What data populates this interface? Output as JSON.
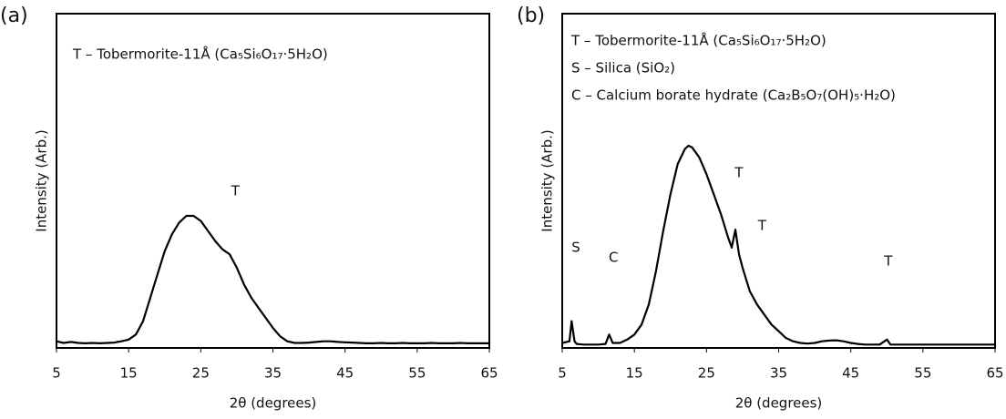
{
  "chart_data": [
    {
      "type": "line",
      "panel_label": "(a)",
      "xlabel": "2θ (degrees)",
      "ylabel": "Intensity (Arb.)",
      "legend_lines": [
        "T – Tobermorite-11Å (Ca₅Si₆O₁₇·5H₂O)"
      ],
      "xlim": [
        5,
        65
      ],
      "xticks": [
        5,
        15,
        25,
        35,
        45,
        55,
        65
      ],
      "ylim": [
        0,
        100
      ],
      "annotations": [
        {
          "text": "T",
          "x": 29.8,
          "y": 46.9
        }
      ],
      "series": [
        {
          "color": "#000000",
          "x": [
            5,
            6,
            7,
            8,
            9,
            10,
            11,
            12,
            13,
            14,
            15,
            16,
            17,
            18,
            19,
            20,
            21,
            22,
            23,
            24,
            25,
            26,
            27,
            28,
            29,
            30,
            31,
            32,
            33,
            34,
            35,
            36,
            37,
            38,
            39,
            40,
            41,
            42,
            43,
            44,
            45,
            46,
            47,
            48,
            49,
            50,
            51,
            52,
            53,
            54,
            55,
            56,
            57,
            58,
            59,
            60,
            61,
            62,
            63,
            64,
            65
          ],
          "values": [
            2,
            1.5,
            1.8,
            1.5,
            1.4,
            1.5,
            1.4,
            1.5,
            1.6,
            2,
            2.5,
            4,
            8,
            15,
            22,
            29,
            34,
            37.5,
            39.5,
            39.5,
            38,
            35,
            32,
            29.5,
            28,
            24,
            19,
            15,
            12,
            9,
            6,
            3.5,
            2,
            1.5,
            1.5,
            1.6,
            1.8,
            2,
            2,
            1.8,
            1.7,
            1.6,
            1.5,
            1.4,
            1.4,
            1.5,
            1.4,
            1.4,
            1.5,
            1.4,
            1.4,
            1.4,
            1.5,
            1.4,
            1.4,
            1.4,
            1.5,
            1.4,
            1.4,
            1.4,
            1.4
          ]
        }
      ]
    },
    {
      "type": "line",
      "panel_label": "(b)",
      "xlabel": "2θ (degrees)",
      "ylabel": "Intensity (Arb.)",
      "legend_lines": [
        "T – Tobermorite-11Å (Ca₅Si₆O₁₇·5H₂O)",
        "S – Silica (SiO₂)",
        "C – Calcium borate hydrate (Ca₂B₅O₇(OH)₅·H₂O)"
      ],
      "xlim": [
        5,
        65
      ],
      "xticks": [
        5,
        15,
        25,
        35,
        45,
        55,
        65
      ],
      "ylim": [
        0,
        100
      ],
      "annotations": [
        {
          "text": "S",
          "x": 6.9,
          "y": 30
        },
        {
          "text": "C",
          "x": 12.1,
          "y": 27
        },
        {
          "text": "T",
          "x": 29.5,
          "y": 52.3
        },
        {
          "text": "T",
          "x": 32.7,
          "y": 36.5
        },
        {
          "text": "T",
          "x": 50.2,
          "y": 25.9
        }
      ],
      "series": [
        {
          "color": "#000000",
          "x": [
            5,
            6,
            6.3,
            6.7,
            7,
            8,
            9,
            10,
            11,
            11.5,
            12,
            13,
            14,
            15,
            16,
            17,
            18,
            19,
            20,
            21,
            22,
            22.5,
            23,
            24,
            25,
            26,
            27,
            28,
            28.5,
            29,
            29.5,
            30,
            31,
            32,
            33,
            34,
            35,
            36,
            37,
            38,
            39,
            40,
            41,
            42,
            43,
            44,
            45,
            46,
            47,
            48,
            49,
            50,
            50.5,
            51,
            52,
            53,
            54,
            55,
            56,
            57,
            58,
            59,
            60,
            61,
            62,
            63,
            64,
            65
          ],
          "values": [
            1.5,
            2,
            8,
            2,
            1.2,
            1,
            1,
            1,
            1.2,
            4,
            1.5,
            1.5,
            2.5,
            4,
            7,
            13,
            23,
            35,
            46,
            55,
            59.5,
            60.5,
            60,
            57,
            52,
            46,
            40,
            33,
            30,
            35.4,
            28,
            24,
            17,
            13,
            10,
            7,
            5,
            3,
            2,
            1.5,
            1.3,
            1.5,
            2,
            2.2,
            2.3,
            2,
            1.5,
            1.2,
            1,
            1,
            1,
            2.5,
            1,
            1,
            1,
            1,
            1,
            1,
            1,
            1,
            1,
            1,
            1,
            1,
            1,
            1,
            1,
            1
          ]
        }
      ]
    }
  ]
}
